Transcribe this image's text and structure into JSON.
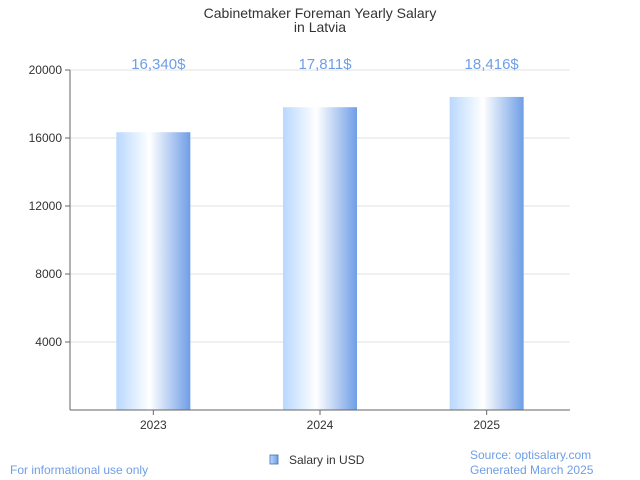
{
  "chart_data": {
    "type": "bar",
    "title_lines": [
      "Cabinetmaker Foreman Yearly Salary",
      "in Latvia"
    ],
    "categories": [
      "2023",
      "2024",
      "2025"
    ],
    "series": [
      {
        "name": "Salary in USD",
        "values": [
          16340,
          17811,
          18416
        ]
      }
    ],
    "value_labels": [
      "16,340$",
      "17,811$",
      "18,416$"
    ],
    "y_ticks": [
      4000,
      8000,
      12000,
      16000,
      20000
    ],
    "ylim": [
      0,
      20000
    ],
    "xlabel": "",
    "ylabel": "",
    "grid": true,
    "legend_position": "bottom-center"
  },
  "footer": {
    "disclaimer": "For informational use only",
    "source": "Source: optisalary.com",
    "generated": "Generated March 2025"
  },
  "colors": {
    "bar_light": "#ffffff",
    "bar_mid": "#b9d8ff",
    "bar_dark": "#6f9ee6",
    "value_label": "#6f9ee6",
    "axis": "#666666",
    "grid": "#e0e0e0"
  }
}
